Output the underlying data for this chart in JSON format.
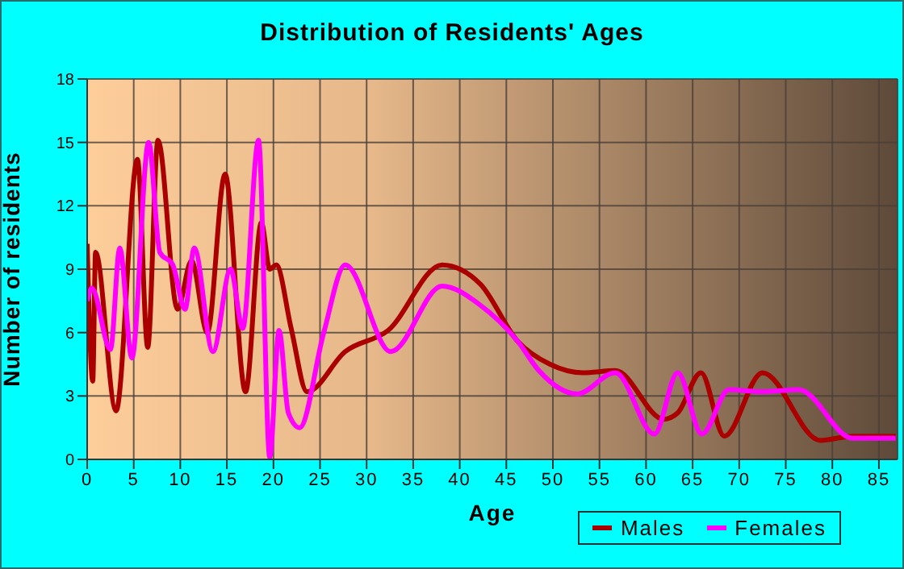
{
  "chart_data": {
    "type": "line",
    "title": "Distribution of Residents' Ages",
    "xlabel": "Age",
    "ylabel": "Number of residents",
    "xlim": [
      0,
      87
    ],
    "xticks": [
      0,
      5,
      10,
      15,
      20,
      25,
      30,
      35,
      40,
      45,
      50,
      55,
      60,
      65,
      70,
      75,
      80,
      85
    ],
    "ylim": [
      0,
      18
    ],
    "yticks": [
      0,
      3,
      6,
      9,
      12,
      15,
      18
    ],
    "grid": true,
    "legend": "bottom right",
    "marker": "none",
    "line_style": "solid",
    "series": [
      {
        "name": "Males",
        "color": "#aa0000",
        "x": [
          0,
          0.6,
          0.9,
          3.1,
          5.4,
          6.5,
          7.6,
          9.7,
          11.2,
          12.9,
          14.8,
          17,
          18.7,
          19.6,
          20.3,
          21.9,
          23.6,
          27.7,
          32.3,
          38.1,
          42.2,
          46.2,
          49.7,
          53.2,
          56.7,
          61.9,
          63.4,
          65.9,
          68.4,
          72.5,
          78.7,
          82.2,
          86.8
        ],
        "values": [
          10.2,
          3.7,
          9.8,
          2.3,
          14.2,
          5.3,
          15.1,
          7.1,
          9.4,
          6,
          13.5,
          3.2,
          11.2,
          9,
          9.2,
          6.2,
          3.2,
          5.1,
          6.1,
          9.2,
          8.3,
          5.6,
          4.5,
          4.1,
          4.2,
          1.9,
          2.2,
          4.1,
          1.1,
          4.1,
          0.9,
          1.1,
          1.1
        ]
      },
      {
        "name": "Females",
        "color": "#ff00ff",
        "x": [
          0,
          0.5,
          2.5,
          3.5,
          4.8,
          6.6,
          7.8,
          9.2,
          10.5,
          11.5,
          13.5,
          15.4,
          16.7,
          18.4,
          19.6,
          20.6,
          21.6,
          22.8,
          25.4,
          27.7,
          32.6,
          38.1,
          42.2,
          46.2,
          48.5,
          52.6,
          56.7,
          60.9,
          63.4,
          66,
          68.9,
          72.4,
          76.4,
          82.2,
          86.8
        ],
        "values": [
          7.5,
          8.1,
          5.2,
          10,
          4.8,
          15,
          9.8,
          9.2,
          7.1,
          10,
          5.1,
          9,
          6.2,
          15.1,
          0.1,
          6.1,
          2.2,
          1.5,
          6,
          9.2,
          5.1,
          8.2,
          7.3,
          5.6,
          4.2,
          3.1,
          4.1,
          1.2,
          4.1,
          1.2,
          3.3,
          3.2,
          3.3,
          1,
          1
        ]
      }
    ]
  }
}
